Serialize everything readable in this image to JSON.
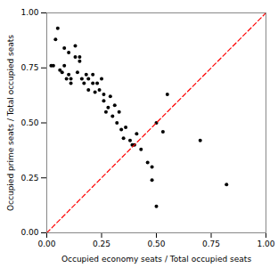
{
  "chart_data": {
    "type": "scatter",
    "xlabel": "Occupied economy seats / Total occupied seats",
    "ylabel": "Occupied prime seats / Total occupied seats",
    "xlim": [
      0.0,
      1.0
    ],
    "ylim": [
      0.0,
      1.0
    ],
    "xticks": [
      {
        "value": 0,
        "label": "0.00"
      },
      0.25,
      {
        "value": 0.5,
        "label": "0.50"
      },
      0.75,
      {
        "value": 1,
        "label": "1.00"
      }
    ],
    "yticks": [
      {
        "value": 0,
        "label": "0.00"
      },
      0.25,
      {
        "value": 0.5,
        "label": "0.50"
      },
      0.75,
      {
        "value": 1,
        "label": "1.00"
      }
    ],
    "series": [
      {
        "type": "scatter",
        "color": "#000000",
        "marker": "circle",
        "x": [
          0.05,
          0.04,
          0.08,
          0.1,
          0.02,
          0.03,
          0.06,
          0.08,
          0.07,
          0.1,
          0.09,
          0.11,
          0.11,
          0.13,
          0.13,
          0.15,
          0.15,
          0.14,
          0.16,
          0.18,
          0.17,
          0.19,
          0.19,
          0.21,
          0.21,
          0.23,
          0.22,
          0.25,
          0.24,
          0.26,
          0.26,
          0.27,
          0.29,
          0.28,
          0.31,
          0.3,
          0.33,
          0.32,
          0.34,
          0.36,
          0.35,
          0.38,
          0.39,
          0.41,
          0.4,
          0.43,
          0.46,
          0.48,
          0.5,
          0.53,
          0.55,
          0.48,
          0.5,
          0.7,
          0.82
        ],
        "values": [
          0.93,
          0.88,
          0.84,
          0.82,
          0.76,
          0.76,
          0.74,
          0.76,
          0.73,
          0.72,
          0.7,
          0.7,
          0.68,
          0.85,
          0.8,
          0.8,
          0.78,
          0.73,
          0.7,
          0.72,
          0.68,
          0.7,
          0.65,
          0.72,
          0.68,
          0.68,
          0.64,
          0.7,
          0.65,
          0.63,
          0.6,
          0.55,
          0.62,
          0.57,
          0.58,
          0.53,
          0.55,
          0.5,
          0.47,
          0.48,
          0.43,
          0.42,
          0.4,
          0.45,
          0.4,
          0.38,
          0.32,
          0.3,
          0.5,
          0.46,
          0.63,
          0.24,
          0.12,
          0.42,
          0.22
        ]
      },
      {
        "type": "line",
        "color": "#ff0000",
        "line_style": "dashed",
        "x": [
          0.0,
          1.0
        ],
        "values": [
          0.0,
          1.0
        ]
      }
    ]
  }
}
